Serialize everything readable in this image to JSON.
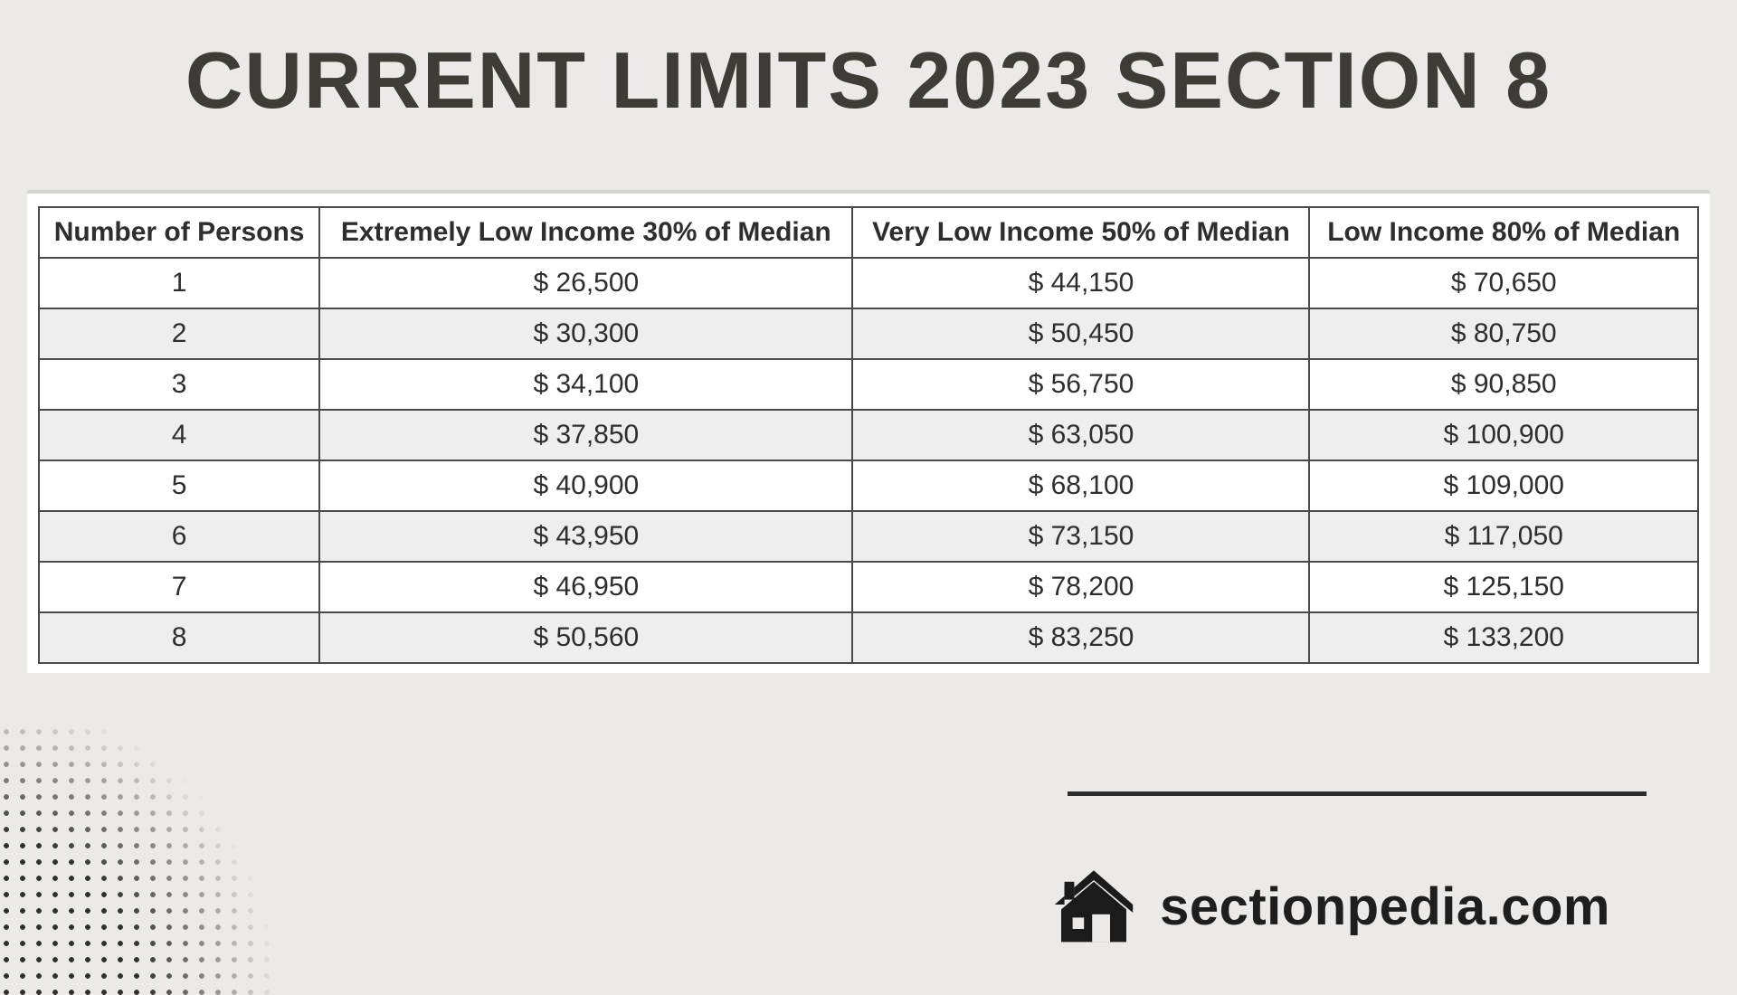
{
  "title": "CURRENT LIMITS 2023 SECTION 8",
  "table": {
    "type": "table",
    "background_color": "#eceae8",
    "border_color": "#4a4a4a",
    "header_bg": "#ffffff",
    "row_alt_bg": "#eeeeee",
    "header_fontsize": 30,
    "cell_fontsize": 30,
    "columns": [
      "Number of Persons",
      "Extremely Low Income 30% of Median",
      "Very Low Income 50% of Median",
      "Low Income 80% of Median"
    ],
    "rows": [
      [
        "1",
        "$ 26,500",
        "$ 44,150",
        "$ 70,650"
      ],
      [
        "2",
        "$ 30,300",
        "$ 50,450",
        "$ 80,750"
      ],
      [
        "3",
        "$ 34,100",
        "$ 56,750",
        "$ 90,850"
      ],
      [
        "4",
        "$ 37,850",
        "$ 63,050",
        "$ 100,900"
      ],
      [
        "5",
        "$ 40,900",
        "$ 68,100",
        "$ 109,000"
      ],
      [
        "6",
        "$ 43,950",
        "$ 73,150",
        "$ 117,050"
      ],
      [
        "7",
        "$ 46,950",
        "$ 78,200",
        "$ 125,150"
      ],
      [
        "8",
        "$ 50,560",
        "$ 83,250",
        "$ 133,200"
      ]
    ]
  },
  "footer": {
    "brand": "sectionpedia.com",
    "icon_name": "house-icon",
    "line_color": "#2b2b2b"
  },
  "colors": {
    "page_bg": "#eceae8",
    "title_color": "#3f3b37",
    "text_color": "#2e2e2e"
  }
}
